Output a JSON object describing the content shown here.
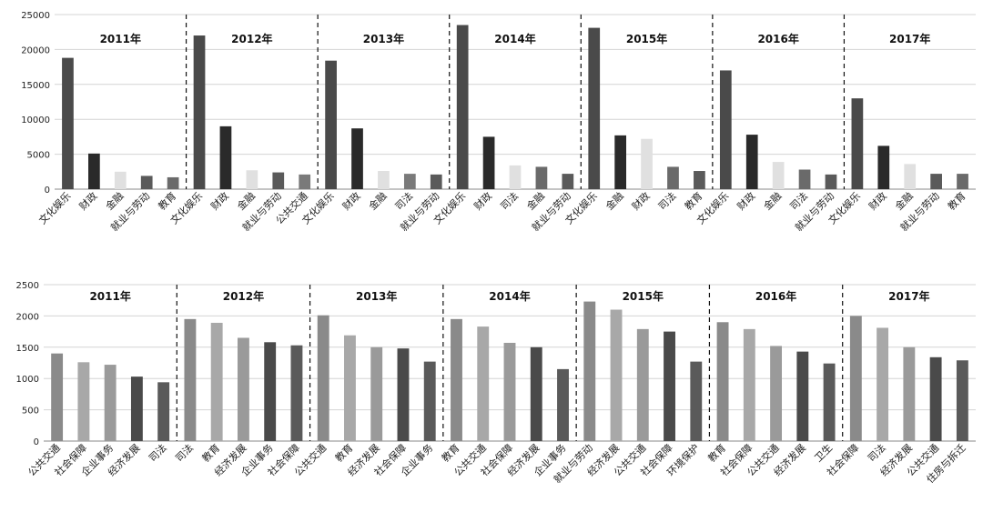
{
  "chart_data": [
    {
      "type": "bar",
      "ylim": [
        0,
        25000
      ],
      "yticks": [
        0,
        5000,
        10000,
        15000,
        20000,
        25000
      ],
      "grid": true,
      "groups": [
        {
          "year": "2011年",
          "bars": [
            {
              "label": "文化娱乐",
              "value": 18800,
              "color": "#4a4a4a"
            },
            {
              "label": "财政",
              "value": 5100,
              "color": "#2a2a2a"
            },
            {
              "label": "金融",
              "value": 2500,
              "color": "#e0e0e0"
            },
            {
              "label": "就业与劳动",
              "value": 1900,
              "color": "#5a5a5a"
            },
            {
              "label": "教育",
              "value": 1700,
              "color": "#6a6a6a"
            }
          ]
        },
        {
          "year": "2012年",
          "bars": [
            {
              "label": "文化娱乐",
              "value": 22000,
              "color": "#4a4a4a"
            },
            {
              "label": "财政",
              "value": 9000,
              "color": "#2a2a2a"
            },
            {
              "label": "金融",
              "value": 2700,
              "color": "#e0e0e0"
            },
            {
              "label": "就业与劳动",
              "value": 2400,
              "color": "#5a5a5a"
            },
            {
              "label": "公共交通",
              "value": 2100,
              "color": "#7a7a7a"
            }
          ]
        },
        {
          "year": "2013年",
          "bars": [
            {
              "label": "文化娱乐",
              "value": 18400,
              "color": "#4a4a4a"
            },
            {
              "label": "财政",
              "value": 8700,
              "color": "#2a2a2a"
            },
            {
              "label": "金融",
              "value": 2600,
              "color": "#e0e0e0"
            },
            {
              "label": "司法",
              "value": 2200,
              "color": "#7a7a7a"
            },
            {
              "label": "就业与劳动",
              "value": 2100,
              "color": "#5a5a5a"
            }
          ]
        },
        {
          "year": "2014年",
          "bars": [
            {
              "label": "文化娱乐",
              "value": 23500,
              "color": "#4a4a4a"
            },
            {
              "label": "财政",
              "value": 7500,
              "color": "#2a2a2a"
            },
            {
              "label": "司法",
              "value": 3400,
              "color": "#e0e0e0"
            },
            {
              "label": "金融",
              "value": 3200,
              "color": "#6a6a6a"
            },
            {
              "label": "就业与劳动",
              "value": 2200,
              "color": "#5a5a5a"
            }
          ]
        },
        {
          "year": "2015年",
          "bars": [
            {
              "label": "文化娱乐",
              "value": 23100,
              "color": "#4a4a4a"
            },
            {
              "label": "金融",
              "value": 7700,
              "color": "#2a2a2a"
            },
            {
              "label": "财政",
              "value": 7200,
              "color": "#e0e0e0"
            },
            {
              "label": "司法",
              "value": 3200,
              "color": "#6a6a6a"
            },
            {
              "label": "教育",
              "value": 2600,
              "color": "#5a5a5a"
            }
          ]
        },
        {
          "year": "2016年",
          "bars": [
            {
              "label": "文化娱乐",
              "value": 17000,
              "color": "#4a4a4a"
            },
            {
              "label": "财政",
              "value": 7800,
              "color": "#2a2a2a"
            },
            {
              "label": "金融",
              "value": 3900,
              "color": "#e0e0e0"
            },
            {
              "label": "司法",
              "value": 2800,
              "color": "#6a6a6a"
            },
            {
              "label": "就业与劳动",
              "value": 2100,
              "color": "#5a5a5a"
            }
          ]
        },
        {
          "year": "2017年",
          "bars": [
            {
              "label": "文化娱乐",
              "value": 13000,
              "color": "#4a4a4a"
            },
            {
              "label": "财政",
              "value": 6200,
              "color": "#2a2a2a"
            },
            {
              "label": "金融",
              "value": 3600,
              "color": "#e0e0e0"
            },
            {
              "label": "就业与劳动",
              "value": 2200,
              "color": "#5a5a5a"
            },
            {
              "label": "教育",
              "value": 2200,
              "color": "#6a6a6a"
            }
          ]
        }
      ]
    },
    {
      "type": "bar",
      "ylim": [
        0,
        2500
      ],
      "yticks": [
        0,
        500,
        1000,
        1500,
        2000,
        2500
      ],
      "grid": true,
      "groups": [
        {
          "year": "2011年",
          "bars": [
            {
              "label": "公共交通",
              "value": 1400,
              "color": "#8a8a8a"
            },
            {
              "label": "社会保障",
              "value": 1260,
              "color": "#a8a8a8"
            },
            {
              "label": "企业事务",
              "value": 1220,
              "color": "#9a9a9a"
            },
            {
              "label": "经济发展",
              "value": 1030,
              "color": "#4a4a4a"
            },
            {
              "label": "司法",
              "value": 940,
              "color": "#5a5a5a"
            }
          ]
        },
        {
          "year": "2012年",
          "bars": [
            {
              "label": "司法",
              "value": 1950,
              "color": "#8a8a8a"
            },
            {
              "label": "教育",
              "value": 1890,
              "color": "#a8a8a8"
            },
            {
              "label": "经济发展",
              "value": 1650,
              "color": "#9a9a9a"
            },
            {
              "label": "企业事务",
              "value": 1580,
              "color": "#4a4a4a"
            },
            {
              "label": "社会保障",
              "value": 1530,
              "color": "#5a5a5a"
            }
          ]
        },
        {
          "year": "2013年",
          "bars": [
            {
              "label": "公共交通",
              "value": 2010,
              "color": "#8a8a8a"
            },
            {
              "label": "教育",
              "value": 1690,
              "color": "#a8a8a8"
            },
            {
              "label": "经济发展",
              "value": 1500,
              "color": "#9a9a9a"
            },
            {
              "label": "社会保障",
              "value": 1480,
              "color": "#4a4a4a"
            },
            {
              "label": "企业事务",
              "value": 1270,
              "color": "#5a5a5a"
            }
          ]
        },
        {
          "year": "2014年",
          "bars": [
            {
              "label": "教育",
              "value": 1950,
              "color": "#8a8a8a"
            },
            {
              "label": "公共交通",
              "value": 1830,
              "color": "#a8a8a8"
            },
            {
              "label": "社会保障",
              "value": 1570,
              "color": "#9a9a9a"
            },
            {
              "label": "经济发展",
              "value": 1500,
              "color": "#4a4a4a"
            },
            {
              "label": "企业事务",
              "value": 1150,
              "color": "#5a5a5a"
            }
          ]
        },
        {
          "year": "2015年",
          "bars": [
            {
              "label": "就业与劳动",
              "value": 2230,
              "color": "#8a8a8a"
            },
            {
              "label": "经济发展",
              "value": 2100,
              "color": "#a8a8a8"
            },
            {
              "label": "公共交通",
              "value": 1790,
              "color": "#9a9a9a"
            },
            {
              "label": "社会保障",
              "value": 1750,
              "color": "#4a4a4a"
            },
            {
              "label": "环境保护",
              "value": 1270,
              "color": "#5a5a5a"
            }
          ]
        },
        {
          "year": "2016年",
          "bars": [
            {
              "label": "教育",
              "value": 1900,
              "color": "#8a8a8a"
            },
            {
              "label": "社会保障",
              "value": 1790,
              "color": "#a8a8a8"
            },
            {
              "label": "公共交通",
              "value": 1520,
              "color": "#9a9a9a"
            },
            {
              "label": "经济发展",
              "value": 1430,
              "color": "#4a4a4a"
            },
            {
              "label": "卫生",
              "value": 1240,
              "color": "#5a5a5a"
            }
          ]
        },
        {
          "year": "2017年",
          "bars": [
            {
              "label": "社会保障",
              "value": 2000,
              "color": "#8a8a8a"
            },
            {
              "label": "司法",
              "value": 1810,
              "color": "#a8a8a8"
            },
            {
              "label": "经济发展",
              "value": 1500,
              "color": "#9a9a9a"
            },
            {
              "label": "公共交通",
              "value": 1340,
              "color": "#4a4a4a"
            },
            {
              "label": "住房与拆迁",
              "value": 1290,
              "color": "#5a5a5a"
            }
          ]
        }
      ]
    }
  ]
}
